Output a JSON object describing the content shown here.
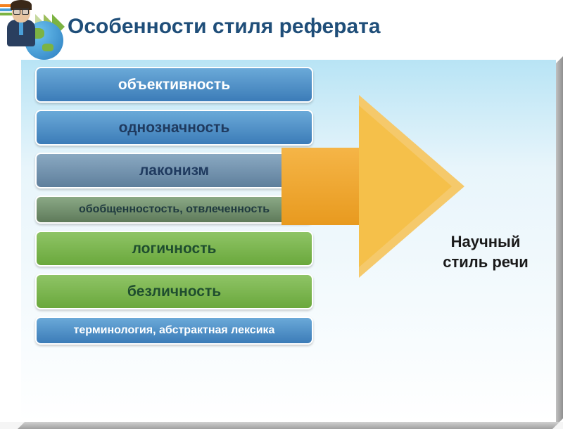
{
  "title": {
    "text": "Особенности стиля реферата",
    "color": "#1f4e79",
    "fontsize": 30,
    "chevron_colors": [
      "#c5d89e",
      "#9cbd5a",
      "#7cb342"
    ]
  },
  "features": [
    {
      "label": "объективность",
      "size": "large",
      "bg_gradient": [
        "#6aa9d8",
        "#3c7cb8"
      ],
      "text_color": "#ffffff"
    },
    {
      "label": "однозначность",
      "size": "large",
      "bg_gradient": [
        "#6aa9d8",
        "#3c7cb8"
      ],
      "text_color": "#1f3a5f"
    },
    {
      "label": "лаконизм",
      "size": "large",
      "bg_gradient": [
        "#8aa9c2",
        "#5f7f9c"
      ],
      "text_color": "#1f3a5f"
    },
    {
      "label": "обобщенностость, отвлеченность",
      "size": "small",
      "bg_gradient": [
        "#8ba986",
        "#5e7a5a"
      ],
      "text_color": "#1f3a3f"
    },
    {
      "label": "логичность",
      "size": "large",
      "bg_gradient": [
        "#8fc466",
        "#6aa83c"
      ],
      "text_color": "#1f4e2f"
    },
    {
      "label": "безличность",
      "size": "large",
      "bg_gradient": [
        "#8fc466",
        "#6aa83c"
      ],
      "text_color": "#1f4e2f"
    },
    {
      "label": "терминология, абстрактная лексика",
      "size": "small",
      "bg_gradient": [
        "#6aa9d8",
        "#3c7cb8"
      ],
      "text_color": "#ffffff"
    }
  ],
  "arrow": {
    "shaft_gradient": [
      "#f5b547",
      "#e89a1f"
    ],
    "head_border_color": "#f5c96b",
    "head_fill_gradient": [
      "#f5c04a",
      "#e89a1f"
    ]
  },
  "result": {
    "line1": "Научный",
    "line2": "стиль речи",
    "color": "#1a1a1a",
    "fontsize": 22
  },
  "background": {
    "slide_bg": "#ffffff",
    "content_bg_top": "#b8e4f5",
    "content_bg_bottom": "#ffffff"
  }
}
